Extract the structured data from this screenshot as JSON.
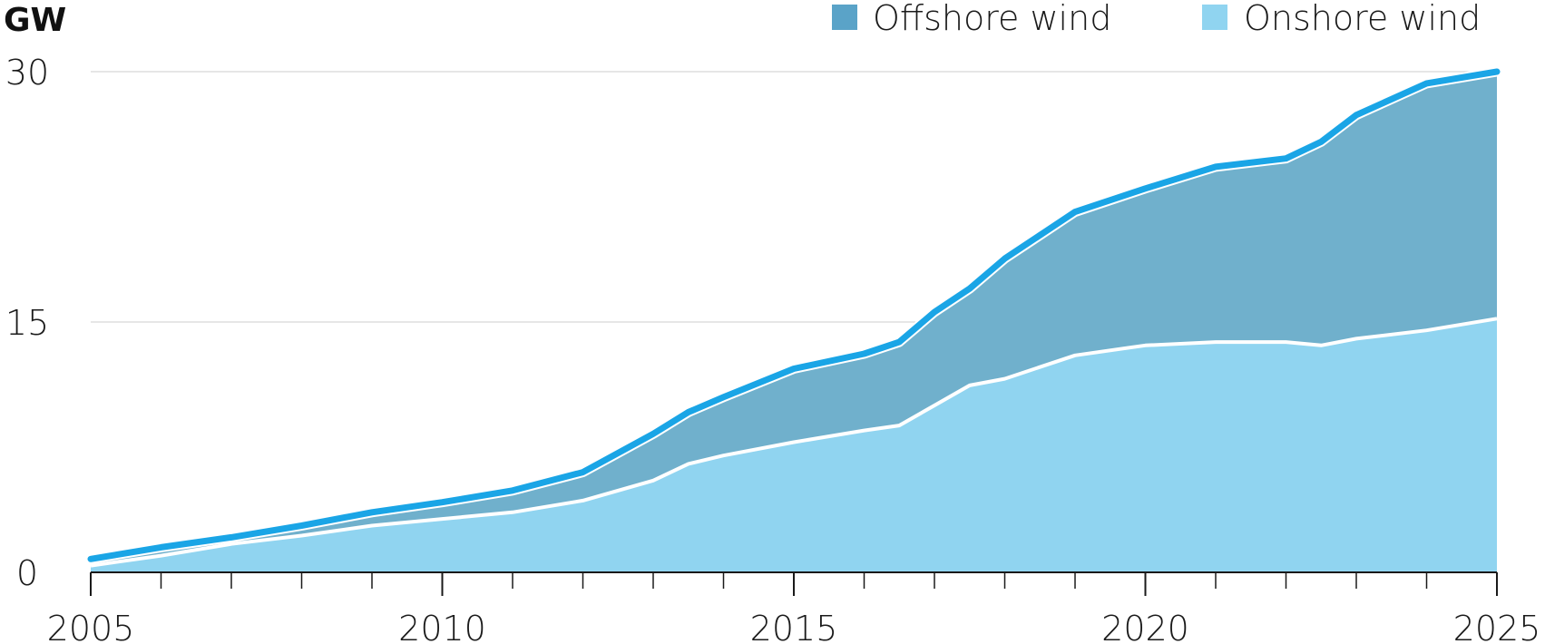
{
  "chart_data": {
    "type": "area",
    "stacked": true,
    "unit_label": "GW",
    "title": "",
    "xlabel": "",
    "ylabel": "GW",
    "xlim": [
      2005,
      2025
    ],
    "ylim": [
      0,
      30
    ],
    "x_ticks": [
      2005,
      2010,
      2015,
      2020,
      2025
    ],
    "x_tick_labels": [
      "2005",
      "2010",
      "2015",
      "2020",
      "2025"
    ],
    "y_ticks": [
      0,
      15,
      30
    ],
    "y_tick_labels": [
      "0",
      "15",
      "30"
    ],
    "grid": "horizontal",
    "legend_position": "top-right",
    "legend": [
      "Offshore wind",
      "Onshore wind"
    ],
    "colors": {
      "offshore_fill": "#70b0cc",
      "onshore_fill": "#90d4f0",
      "total_line": "#1aa5e6",
      "onshore_line": "#ffffff",
      "offshore_swatch": "#5aa3c8",
      "onshore_swatch": "#90d4f0",
      "grid": "#cccccc",
      "axis": "#1a1a1a"
    },
    "x": [
      2005,
      2006,
      2007,
      2008,
      2009,
      2010,
      2011,
      2012,
      2013,
      2013.5,
      2014,
      2015,
      2016,
      2016.5,
      2017,
      2017.5,
      2018,
      2019,
      2020,
      2021,
      2022,
      2022.5,
      2023,
      2024,
      2025
    ],
    "series": [
      {
        "name": "Onshore wind",
        "values": [
          0.4,
          1.0,
          1.7,
          2.2,
          2.8,
          3.2,
          3.6,
          4.3,
          5.5,
          6.5,
          7.0,
          7.8,
          8.5,
          8.8,
          10.0,
          11.2,
          11.6,
          13.0,
          13.6,
          13.8,
          13.8,
          13.6,
          14.0,
          14.5,
          15.2
        ]
      },
      {
        "name": "Offshore wind",
        "values": [
          0.4,
          0.5,
          0.4,
          0.6,
          0.8,
          1.0,
          1.3,
          1.7,
          2.8,
          3.1,
          3.5,
          4.4,
          4.6,
          5.0,
          5.6,
          5.8,
          7.2,
          8.6,
          9.4,
          10.5,
          11.0,
          12.2,
          13.4,
          14.8,
          14.8
        ]
      }
    ]
  }
}
